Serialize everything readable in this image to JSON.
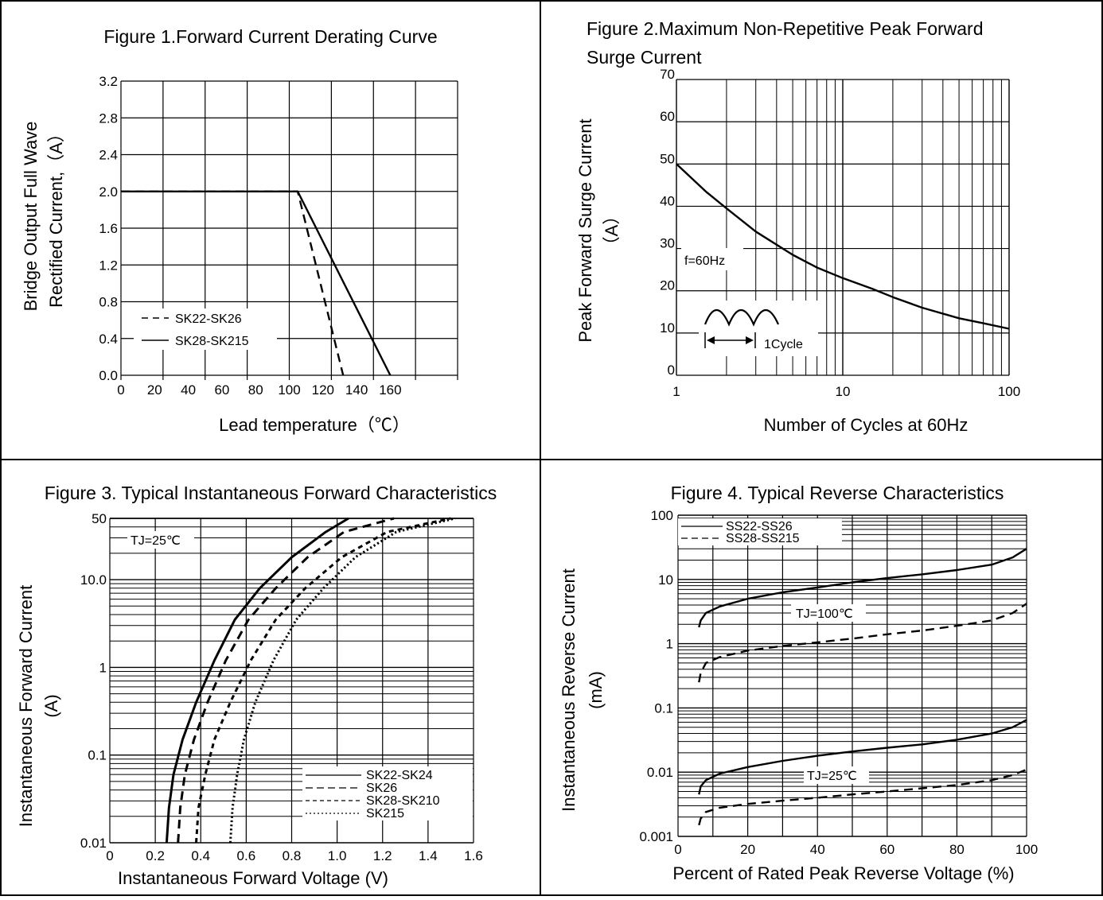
{
  "chart_data": [
    {
      "type": "line",
      "title": "Figure 1.Forward Current Derating Curve",
      "xlabel": "Lead temperature（℃）",
      "ylabel_line1": "Bridge Output Full Wave",
      "ylabel_line2": "Rectified  Current,（A）",
      "xlim": [
        0,
        200
      ],
      "ylim": [
        0,
        3.2
      ],
      "x_ticks": [
        "0",
        "20",
        "40",
        "60",
        "80",
        "100",
        "120",
        "140",
        "160"
      ],
      "x_tick_values": [
        0,
        20,
        40,
        60,
        80,
        100,
        120,
        140,
        160
      ],
      "y_ticks": [
        "0.0",
        "0.4",
        "0.8",
        "1.2",
        "1.6",
        "2.0",
        "2.4",
        "2.8",
        "3.2"
      ],
      "y_tick_values": [
        0,
        0.4,
        0.8,
        1.2,
        1.6,
        2.0,
        2.4,
        2.8,
        3.2
      ],
      "series": [
        {
          "name": "SK22-SK26",
          "dash": "dashed",
          "x": [
            0,
            105,
            132
          ],
          "y": [
            2.0,
            2.0,
            0.0
          ]
        },
        {
          "name": "SK28-SK215",
          "dash": "solid",
          "x": [
            0,
            105,
            160
          ],
          "y": [
            2.0,
            2.0,
            0.0
          ]
        }
      ]
    },
    {
      "type": "line",
      "title_line1": "Figure 2.Maximum Non-Repetitive Peak Forward",
      "title_line2": "Surge Current",
      "xlabel": "Number of Cycles at 60Hz",
      "ylabel_line1": "Peak Forward Surge Current",
      "ylabel_line2": "（A）",
      "x_scale": "log",
      "xlim": [
        1,
        100
      ],
      "ylim": [
        0,
        70
      ],
      "x_ticks": [
        "1",
        "10",
        "100"
      ],
      "x_tick_values": [
        1,
        10,
        100
      ],
      "y_ticks": [
        "0",
        "10",
        "20",
        "30",
        "40",
        "50",
        "60",
        "70"
      ],
      "y_tick_values": [
        0,
        10,
        20,
        30,
        40,
        50,
        60,
        70
      ],
      "annotation_freq": "f=60Hz",
      "annotation_cycle": "1Cycle",
      "series": [
        {
          "x": [
            1,
            1.5,
            2,
            3,
            5,
            7,
            10,
            15,
            20,
            30,
            50,
            70,
            100
          ],
          "y": [
            50,
            43.5,
            39.5,
            34,
            28.5,
            25.5,
            23,
            20.5,
            18.5,
            16,
            13.5,
            12.3,
            11
          ]
        }
      ]
    },
    {
      "type": "line",
      "title": "Figure 3. Typical Instantaneous Forward Characteristics",
      "xlabel": "Instantaneous Forward Voltage (V)",
      "ylabel_line1": "Instantaneous Forward Current",
      "ylabel_line2": "(A)",
      "y_scale": "log",
      "xlim": [
        0,
        1.6
      ],
      "ylim": [
        0.01,
        50
      ],
      "x_ticks": [
        "0",
        "0.2",
        "0.4",
        "0.6",
        "0.8",
        "1.0",
        "1.2",
        "1.4",
        "1.6"
      ],
      "x_tick_values": [
        0,
        0.2,
        0.4,
        0.6,
        0.8,
        1.0,
        1.2,
        1.4,
        1.6
      ],
      "y_ticks": [
        "0.01",
        "0.1",
        "1",
        "10.0",
        "50"
      ],
      "y_tick_values": [
        0.01,
        0.1,
        1,
        10,
        50
      ],
      "annotation": "TJ=25℃",
      "series": [
        {
          "name": "SK22-SK24",
          "dash": "solid",
          "x": [
            0.25,
            0.26,
            0.28,
            0.32,
            0.38,
            0.46,
            0.55,
            0.66,
            0.8,
            0.95,
            1.05
          ],
          "y": [
            0.01,
            0.025,
            0.06,
            0.15,
            0.4,
            1.2,
            3.5,
            8,
            18,
            35,
            50
          ]
        },
        {
          "name": "SK26",
          "dash": "dashed",
          "x": [
            0.3,
            0.31,
            0.33,
            0.37,
            0.43,
            0.51,
            0.61,
            0.73,
            0.87,
            1.03,
            1.25
          ],
          "y": [
            0.01,
            0.025,
            0.06,
            0.15,
            0.4,
            1.2,
            3.5,
            8,
            18,
            35,
            50
          ]
        },
        {
          "name": "SK28-SK210",
          "dash": "short-dash",
          "x": [
            0.38,
            0.39,
            0.42,
            0.46,
            0.53,
            0.62,
            0.73,
            0.86,
            1.02,
            1.22,
            1.5
          ],
          "y": [
            0.01,
            0.025,
            0.06,
            0.15,
            0.4,
            1.2,
            3.5,
            8,
            18,
            35,
            50
          ]
        },
        {
          "name": "SK215",
          "dash": "dotted",
          "x": [
            0.53,
            0.54,
            0.56,
            0.59,
            0.64,
            0.72,
            0.82,
            0.94,
            1.08,
            1.26,
            1.52
          ],
          "y": [
            0.01,
            0.025,
            0.06,
            0.15,
            0.4,
            1.2,
            3.5,
            8,
            18,
            35,
            50
          ]
        }
      ]
    },
    {
      "type": "line",
      "title": "Figure 4. Typical Reverse Characteristics",
      "xlabel": "Percent of  Rated Peak Reverse Voltage (%)",
      "ylabel_line1": "Instantaneous Reverse Current",
      "ylabel_line2": "(mA)",
      "y_scale": "log",
      "xlim": [
        0,
        100
      ],
      "ylim": [
        0.001,
        100
      ],
      "x_ticks": [
        "0",
        "20",
        "40",
        "60",
        "80",
        "100"
      ],
      "x_tick_values": [
        0,
        20,
        40,
        60,
        80,
        100
      ],
      "y_ticks": [
        "0.001",
        "0.01",
        "0.1",
        "1",
        "10",
        "100"
      ],
      "y_tick_values": [
        0.001,
        0.01,
        0.1,
        1,
        10,
        100
      ],
      "legend": [
        "SS22-SS26",
        "SS28-SS215"
      ],
      "annotation_high": "TJ=100℃",
      "annotation_low": "TJ=25℃",
      "series": [
        {
          "name": "SS22-SS26 TJ=100℃",
          "dash": "solid",
          "x": [
            6,
            6.5,
            8,
            12,
            20,
            30,
            40,
            50,
            60,
            70,
            80,
            90,
            96,
            100
          ],
          "y": [
            1.8,
            2.3,
            3.0,
            3.8,
            5.0,
            6.3,
            7.5,
            9,
            10.5,
            12,
            14,
            17,
            22,
            30
          ]
        },
        {
          "name": "SS28-SS215 TJ=100℃",
          "dash": "dashed",
          "x": [
            6,
            6.5,
            8,
            12,
            20,
            30,
            40,
            50,
            60,
            70,
            80,
            90,
            96,
            100
          ],
          "y": [
            0.25,
            0.35,
            0.5,
            0.62,
            0.78,
            0.92,
            1.05,
            1.2,
            1.4,
            1.6,
            1.9,
            2.3,
            3.0,
            4.2
          ]
        },
        {
          "name": "SS22-SS26 TJ=25℃",
          "dash": "solid",
          "x": [
            6,
            6.5,
            8,
            12,
            20,
            30,
            40,
            50,
            60,
            70,
            80,
            90,
            96,
            100
          ],
          "y": [
            0.0045,
            0.006,
            0.0075,
            0.0095,
            0.012,
            0.015,
            0.018,
            0.021,
            0.024,
            0.027,
            0.032,
            0.04,
            0.05,
            0.065
          ]
        },
        {
          "name": "SS28-SS215 TJ=25℃",
          "dash": "dashed",
          "x": [
            6,
            6.5,
            8,
            12,
            20,
            30,
            40,
            50,
            60,
            70,
            80,
            90,
            96,
            100
          ],
          "y": [
            0.0015,
            0.0019,
            0.0024,
            0.0028,
            0.0032,
            0.0036,
            0.004,
            0.0045,
            0.005,
            0.0056,
            0.0063,
            0.0075,
            0.009,
            0.011
          ]
        }
      ]
    }
  ]
}
